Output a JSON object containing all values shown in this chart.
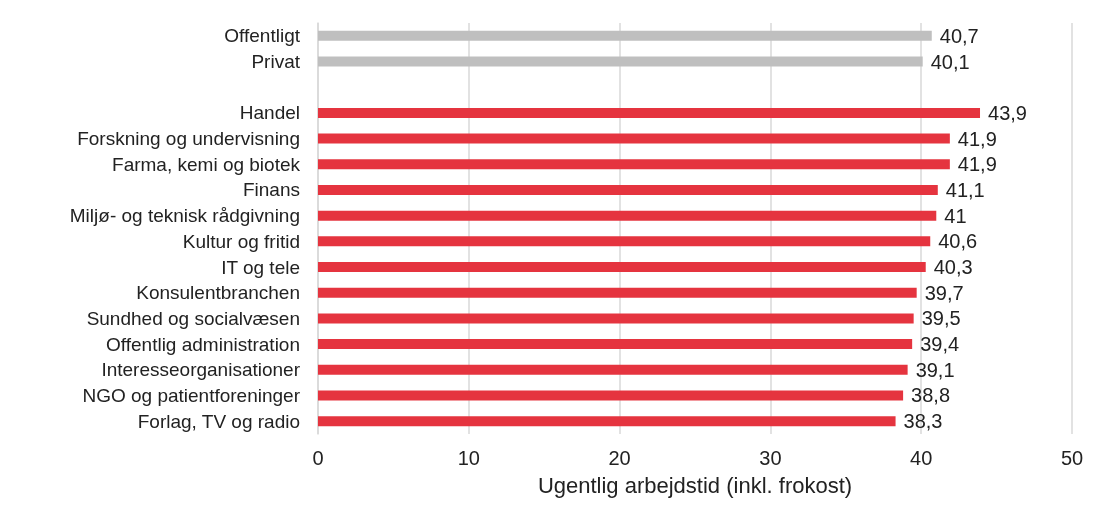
{
  "chart_data": {
    "type": "bar",
    "orientation": "horizontal",
    "xlabel": "Ugentlig arbejdstid (inkl. frokost)",
    "categories": [
      "Offentligt",
      "Privat",
      null,
      "Handel",
      "Forskning og undervisning",
      "Farma, kemi og biotek",
      "Finans",
      "Miljø- og teknisk rådgivning",
      "Kultur og fritid",
      "IT og tele",
      "Konsulentbranchen",
      "Sundhed og socialvæsen",
      "Offentlig administration",
      "Interesseorganisationer",
      "NGO og patientforeninger",
      "Forlag, TV og radio"
    ],
    "values": [
      40.7,
      40.1,
      null,
      43.9,
      41.9,
      41.9,
      41.1,
      41,
      40.6,
      40.3,
      39.7,
      39.5,
      39.4,
      39.1,
      38.8,
      38.3
    ],
    "value_labels": [
      "40,7",
      "40,1",
      null,
      "43,9",
      "41,9",
      "41,9",
      "41,1",
      "41",
      "40,6",
      "40,3",
      "39,7",
      "39,5",
      "39,4",
      "39,1",
      "38,8",
      "38,3"
    ],
    "colors": [
      "#bfbfbf",
      "#bfbfbf",
      null,
      "#e5343f",
      "#e5343f",
      "#e5343f",
      "#e5343f",
      "#e5343f",
      "#e5343f",
      "#e5343f",
      "#e5343f",
      "#e5343f",
      "#e5343f",
      "#e5343f",
      "#e5343f",
      "#e5343f"
    ],
    "xlim": [
      0,
      50
    ],
    "xticks": [
      0,
      10,
      20,
      30,
      40,
      50
    ],
    "grid": "x"
  }
}
